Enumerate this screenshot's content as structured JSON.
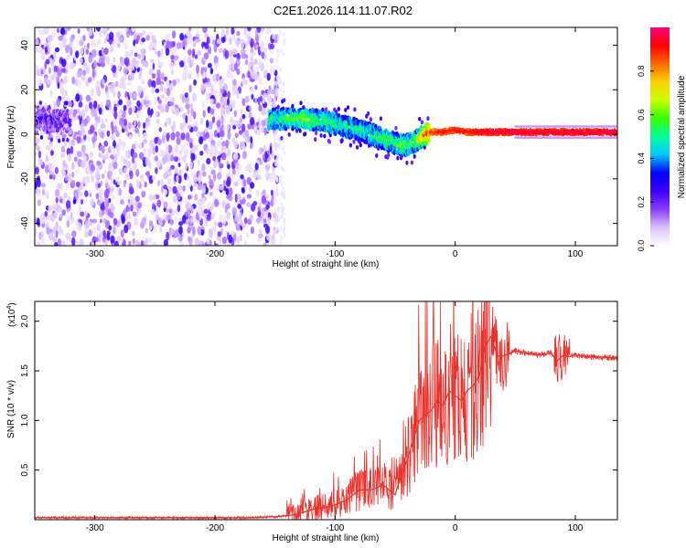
{
  "figure": {
    "title": "C2E1.2026.114.11.07.R02"
  },
  "chart_data": [
    {
      "type": "heatmap",
      "title": "",
      "xlabel": "Height of straight line (km)",
      "ylabel": "Frequency (Hz)",
      "xlim": [
        -350,
        135
      ],
      "ylim": [
        -50,
        48
      ],
      "xticks": [
        -300,
        -200,
        -100,
        0,
        100
      ],
      "yticks": [
        -40,
        -20,
        0,
        20,
        40
      ],
      "colorbar": {
        "label": "Normalized spectral amplitude",
        "range": [
          0,
          1
        ],
        "ticks": [
          0.0,
          0.2,
          0.4,
          0.6,
          0.8
        ],
        "colormap": [
          "#ffffff",
          "#d9c2ff",
          "#8a3cff",
          "#3a00ff",
          "#0000ff",
          "#00c8ff",
          "#00ff9a",
          "#38ff00",
          "#c8ff00",
          "#ffd200",
          "#ff6a00",
          "#ff0000",
          "#ff0080"
        ]
      },
      "noise_region": {
        "x_range": [
          -350,
          -148
        ],
        "amplitude_range": [
          0.05,
          0.25
        ]
      },
      "ridge": [
        [
          -350,
          7,
          0.18
        ],
        [
          -335,
          6,
          0.2
        ],
        [
          -320,
          6,
          0.16
        ],
        [
          -155,
          7,
          0.45
        ],
        [
          -140,
          7,
          0.5
        ],
        [
          -125,
          7,
          0.55
        ],
        [
          -110,
          6,
          0.5
        ],
        [
          -95,
          4,
          0.45
        ],
        [
          -80,
          2,
          0.45
        ],
        [
          -70,
          0,
          0.45
        ],
        [
          -60,
          -2,
          0.5
        ],
        [
          -50,
          -4,
          0.5
        ],
        [
          -42,
          -5,
          0.55
        ],
        [
          -35,
          -4,
          0.5
        ],
        [
          -28,
          -1,
          0.7
        ],
        [
          -20,
          1,
          0.85
        ],
        [
          -10,
          1,
          0.9
        ],
        [
          0,
          2,
          0.9
        ],
        [
          10,
          1,
          0.9
        ],
        [
          25,
          1,
          0.95
        ],
        [
          50,
          1,
          0.95
        ],
        [
          80,
          1,
          0.95
        ],
        [
          110,
          1,
          0.95
        ],
        [
          135,
          1,
          0.95
        ]
      ]
    },
    {
      "type": "line",
      "title": "",
      "xlabel": "Height of straight line (km)",
      "ylabel": "SNR (10 * v/v)",
      "y_multiplier": "(x10",
      "y_multiplier_exp": "4",
      "y_multiplier_close": ")",
      "xlim": [
        -350,
        135
      ],
      "ylim": [
        0,
        2.2
      ],
      "xticks": [
        -300,
        -200,
        -100,
        0,
        100
      ],
      "yticks": [
        0.5,
        1.0,
        1.5,
        2.0
      ],
      "color": "#e8302b",
      "series": [
        {
          "x": [
            -350,
            -300,
            -250,
            -200,
            -170,
            -150,
            -140,
            -130,
            -120,
            -110,
            -100,
            -90,
            -80,
            -70,
            -60,
            -50,
            -45,
            -40,
            -35,
            -30,
            -25,
            -20,
            -15,
            -10,
            -5,
            0,
            5,
            10,
            15,
            20,
            25,
            30,
            35,
            40,
            50,
            60,
            70,
            80,
            85,
            90,
            95,
            100,
            110,
            120,
            135
          ],
          "y": [
            0.02,
            0.02,
            0.02,
            0.02,
            0.02,
            0.03,
            0.04,
            0.06,
            0.1,
            0.12,
            0.15,
            0.2,
            0.3,
            0.3,
            0.35,
            0.25,
            0.45,
            0.6,
            0.8,
            1.0,
            1.05,
            1.1,
            1.2,
            1.15,
            1.3,
            1.25,
            1.2,
            1.3,
            1.35,
            1.45,
            1.75,
            1.85,
            1.65,
            1.65,
            1.7,
            1.68,
            1.66,
            1.68,
            1.6,
            1.66,
            1.64,
            1.66,
            1.64,
            1.64,
            1.63
          ]
        }
      ]
    }
  ]
}
